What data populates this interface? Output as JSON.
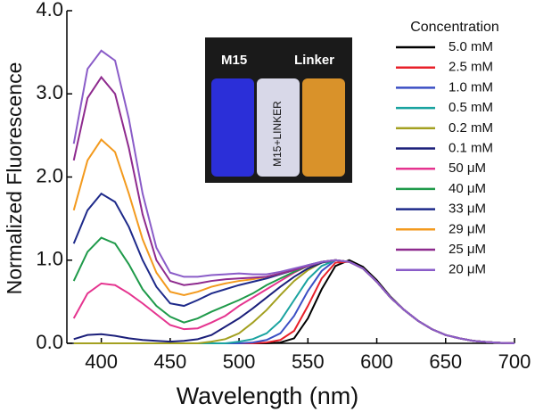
{
  "chart_data": {
    "type": "line",
    "xlabel": "Wavelength (nm)",
    "ylabel": "Normalized Fluorescence",
    "legend_title": "Concentration",
    "legend": "upper right",
    "inset_labels": [
      "M15",
      "Linker",
      "M15+LINKER"
    ],
    "xlim": [
      375,
      700
    ],
    "xticks": [
      400,
      450,
      500,
      550,
      600,
      650,
      700
    ],
    "ylim": [
      0,
      4
    ],
    "yticks": [
      {
        "value": 0,
        "label": "0.0"
      },
      {
        "value": 1,
        "label": "1.0"
      },
      {
        "value": 2,
        "label": "2.0"
      },
      {
        "value": 3,
        "label": "3.0"
      },
      {
        "value": 4,
        "label": "4.0"
      }
    ],
    "x": [
      380,
      390,
      400,
      410,
      420,
      430,
      440,
      450,
      460,
      470,
      480,
      490,
      500,
      510,
      520,
      530,
      540,
      550,
      560,
      570,
      580,
      590,
      600,
      610,
      620,
      630,
      640,
      650,
      660,
      670,
      680,
      690,
      700
    ],
    "series": [
      {
        "name": "5.0 mM",
        "color": "#000000",
        "values": [
          0,
          0,
          0,
          0,
          0,
          0,
          0,
          0,
          0,
          0,
          0,
          0,
          0,
          0,
          0,
          0.01,
          0.06,
          0.3,
          0.65,
          0.93,
          1.0,
          0.92,
          0.76,
          0.56,
          0.4,
          0.27,
          0.17,
          0.1,
          0.06,
          0.03,
          0.015,
          0.005,
          0
        ]
      },
      {
        "name": "2.5 mM",
        "color": "#e8202a",
        "values": [
          0,
          0,
          0,
          0,
          0,
          0,
          0,
          0,
          0,
          0,
          0,
          0,
          0,
          0,
          0.01,
          0.04,
          0.15,
          0.45,
          0.78,
          0.97,
          0.98,
          0.9,
          0.74,
          0.55,
          0.4,
          0.27,
          0.17,
          0.1,
          0.06,
          0.03,
          0.015,
          0.005,
          0
        ]
      },
      {
        "name": "1.0 mM",
        "color": "#3b4fc4",
        "values": [
          0,
          0,
          0,
          0,
          0,
          0,
          0,
          0,
          0,
          0,
          0,
          0,
          0,
          0.01,
          0.04,
          0.12,
          0.33,
          0.63,
          0.87,
          1.0,
          0.98,
          0.9,
          0.74,
          0.55,
          0.4,
          0.27,
          0.17,
          0.1,
          0.06,
          0.03,
          0.015,
          0.005,
          0
        ]
      },
      {
        "name": "0.5 mM",
        "color": "#1aa3a0",
        "values": [
          0,
          0,
          0,
          0,
          0,
          0,
          0,
          0,
          0,
          0,
          0,
          0,
          0.02,
          0.05,
          0.12,
          0.27,
          0.52,
          0.77,
          0.93,
          1.0,
          0.98,
          0.9,
          0.74,
          0.55,
          0.4,
          0.27,
          0.17,
          0.1,
          0.06,
          0.03,
          0.015,
          0.005,
          0
        ]
      },
      {
        "name": "0.2 mM",
        "color": "#a3a020",
        "values": [
          0,
          0,
          0,
          0,
          0,
          0,
          0,
          0,
          0,
          0,
          0.02,
          0.05,
          0.12,
          0.25,
          0.4,
          0.58,
          0.75,
          0.88,
          0.97,
          1.0,
          0.98,
          0.9,
          0.74,
          0.55,
          0.4,
          0.27,
          0.17,
          0.1,
          0.06,
          0.03,
          0.015,
          0.005,
          0
        ]
      },
      {
        "name": "0.1 mM",
        "color": "#1b1f7a",
        "values": [
          0.05,
          0.1,
          0.11,
          0.09,
          0.06,
          0.04,
          0.03,
          0.02,
          0.03,
          0.05,
          0.1,
          0.2,
          0.3,
          0.42,
          0.55,
          0.68,
          0.8,
          0.9,
          0.97,
          1.0,
          0.98,
          0.9,
          0.74,
          0.55,
          0.4,
          0.27,
          0.17,
          0.1,
          0.06,
          0.03,
          0.015,
          0.005,
          0
        ]
      },
      {
        "name": "50 μM",
        "color": "#e5348f",
        "values": [
          0.3,
          0.6,
          0.72,
          0.7,
          0.6,
          0.48,
          0.35,
          0.22,
          0.17,
          0.18,
          0.25,
          0.33,
          0.45,
          0.55,
          0.65,
          0.75,
          0.85,
          0.93,
          0.98,
          1.0,
          0.98,
          0.9,
          0.74,
          0.55,
          0.4,
          0.27,
          0.17,
          0.1,
          0.06,
          0.03,
          0.015,
          0.005,
          0
        ]
      },
      {
        "name": "40 μM",
        "color": "#1f9a4a",
        "values": [
          0.75,
          1.1,
          1.27,
          1.2,
          0.95,
          0.65,
          0.45,
          0.32,
          0.25,
          0.3,
          0.38,
          0.45,
          0.52,
          0.6,
          0.7,
          0.78,
          0.86,
          0.93,
          0.98,
          1.0,
          0.98,
          0.9,
          0.74,
          0.55,
          0.4,
          0.27,
          0.17,
          0.1,
          0.06,
          0.03,
          0.015,
          0.005,
          0
        ]
      },
      {
        "name": "33 μM",
        "color": "#1e2a8a",
        "values": [
          1.2,
          1.6,
          1.8,
          1.7,
          1.4,
          1.0,
          0.68,
          0.48,
          0.45,
          0.52,
          0.6,
          0.65,
          0.7,
          0.74,
          0.78,
          0.83,
          0.88,
          0.94,
          0.98,
          1.0,
          0.98,
          0.9,
          0.74,
          0.55,
          0.4,
          0.27,
          0.17,
          0.1,
          0.06,
          0.03,
          0.015,
          0.005,
          0
        ]
      },
      {
        "name": "29 μM",
        "color": "#f39a1e",
        "values": [
          1.6,
          2.2,
          2.45,
          2.3,
          1.8,
          1.25,
          0.85,
          0.62,
          0.58,
          0.62,
          0.68,
          0.72,
          0.75,
          0.77,
          0.8,
          0.84,
          0.88,
          0.93,
          0.98,
          1.0,
          0.98,
          0.9,
          0.74,
          0.55,
          0.4,
          0.27,
          0.17,
          0.1,
          0.06,
          0.03,
          0.015,
          0.005,
          0
        ]
      },
      {
        "name": "25 μM",
        "color": "#8e2a8e",
        "values": [
          2.2,
          2.95,
          3.2,
          3.0,
          2.35,
          1.55,
          1.0,
          0.75,
          0.7,
          0.72,
          0.75,
          0.77,
          0.78,
          0.79,
          0.8,
          0.84,
          0.88,
          0.93,
          0.98,
          1.0,
          0.98,
          0.9,
          0.74,
          0.55,
          0.4,
          0.27,
          0.17,
          0.1,
          0.06,
          0.03,
          0.015,
          0.005,
          0
        ]
      },
      {
        "name": "20 μM",
        "color": "#8a5cc8",
        "values": [
          2.4,
          3.3,
          3.52,
          3.4,
          2.7,
          1.8,
          1.15,
          0.85,
          0.8,
          0.8,
          0.82,
          0.83,
          0.84,
          0.83,
          0.83,
          0.86,
          0.9,
          0.94,
          0.98,
          1.0,
          0.98,
          0.9,
          0.74,
          0.55,
          0.4,
          0.27,
          0.17,
          0.1,
          0.06,
          0.03,
          0.015,
          0.005,
          0
        ]
      }
    ]
  }
}
